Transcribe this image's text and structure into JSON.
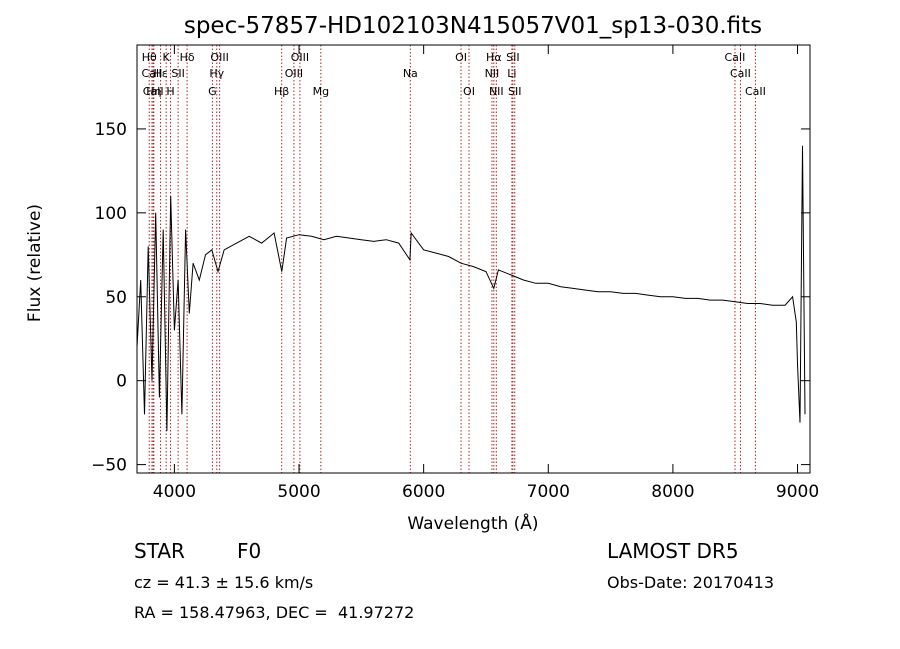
{
  "chart_data": {
    "type": "line",
    "title": "spec-57857-HD102103N415057V01_sp13-030.fits",
    "xlabel": "Wavelength (Å)",
    "ylabel": "Flux (relative)",
    "xlim": [
      3700,
      9100
    ],
    "ylim": [
      -55,
      200
    ],
    "x_ticks": [
      4000,
      5000,
      6000,
      7000,
      8000,
      9000
    ],
    "y_ticks": [
      -50,
      0,
      50,
      100,
      150
    ],
    "grid": false,
    "line_color": "#000000",
    "marker_color": "#b22222",
    "spectrum": {
      "x": [
        3700,
        3730,
        3760,
        3790,
        3820,
        3850,
        3880,
        3910,
        3940,
        3970,
        4000,
        4030,
        4060,
        4090,
        4120,
        4150,
        4200,
        4250,
        4300,
        4350,
        4400,
        4500,
        4600,
        4700,
        4800,
        4862,
        4900,
        5000,
        5100,
        5200,
        5300,
        5400,
        5500,
        5600,
        5700,
        5800,
        5890,
        5900,
        6000,
        6100,
        6200,
        6300,
        6400,
        6500,
        6563,
        6600,
        6700,
        6800,
        6900,
        7000,
        7100,
        7200,
        7300,
        7400,
        7500,
        7600,
        7700,
        7800,
        7900,
        8000,
        8100,
        8200,
        8300,
        8400,
        8500,
        8600,
        8700,
        8800,
        8900,
        8960,
        8990,
        9000,
        9020,
        9040,
        9060
      ],
      "y": [
        20,
        60,
        -20,
        80,
        0,
        100,
        -10,
        90,
        -30,
        110,
        30,
        60,
        -20,
        90,
        40,
        70,
        60,
        75,
        78,
        65,
        78,
        82,
        86,
        82,
        88,
        65,
        85,
        87,
        86,
        84,
        86,
        85,
        84,
        83,
        84,
        82,
        72,
        88,
        78,
        76,
        74,
        70,
        68,
        65,
        55,
        66,
        63,
        60,
        58,
        58,
        56,
        55,
        54,
        53,
        53,
        52,
        52,
        51,
        50,
        50,
        49,
        49,
        48,
        48,
        47,
        46,
        46,
        45,
        45,
        50,
        35,
        10,
        -25,
        140,
        -20
      ]
    },
    "line_markers": [
      {
        "label": "Hθ",
        "x": 3798,
        "row": 0
      },
      {
        "label": "CaII",
        "x": 3820,
        "row": 1
      },
      {
        "label": "CaII",
        "x": 3830,
        "row": 2
      },
      {
        "label": "Hη",
        "x": 3835,
        "row": 2
      },
      {
        "label": "K",
        "x": 3934,
        "row": 0
      },
      {
        "label": "Hε",
        "x": 3889,
        "row": 1
      },
      {
        "label": "H",
        "x": 3969,
        "row": 2
      },
      {
        "label": "Hδ",
        "x": 4102,
        "row": 0
      },
      {
        "label": "SII",
        "x": 4030,
        "row": 1
      },
      {
        "label": "OIII",
        "x": 4363,
        "row": 0
      },
      {
        "label": "Hγ",
        "x": 4340,
        "row": 1
      },
      {
        "label": "G",
        "x": 4305,
        "row": 2
      },
      {
        "label": "Hβ",
        "x": 4861,
        "row": 2
      },
      {
        "label": "OIII",
        "x": 4959,
        "row": 1
      },
      {
        "label": "OIII",
        "x": 5007,
        "row": 0
      },
      {
        "label": "Mg",
        "x": 5175,
        "row": 2
      },
      {
        "label": "Na",
        "x": 5893,
        "row": 1
      },
      {
        "label": "OI",
        "x": 6300,
        "row": 0
      },
      {
        "label": "OI",
        "x": 6364,
        "row": 2
      },
      {
        "label": "Hα",
        "x": 6563,
        "row": 0
      },
      {
        "label": "NII",
        "x": 6548,
        "row": 1
      },
      {
        "label": "NII",
        "x": 6583,
        "row": 2
      },
      {
        "label": "SII",
        "x": 6716,
        "row": 0
      },
      {
        "label": "Li",
        "x": 6708,
        "row": 1
      },
      {
        "label": "SII",
        "x": 6731,
        "row": 2
      },
      {
        "label": "CaII",
        "x": 8498,
        "row": 0
      },
      {
        "label": "CaII",
        "x": 8542,
        "row": 1
      },
      {
        "label": "CaII",
        "x": 8662,
        "row": 2
      }
    ]
  },
  "footer": {
    "object_type": "STAR",
    "subclass": "F0",
    "redshift": "cz = 41.3 ± 15.6 km/s",
    "coords": "RA = 158.47963, DEC =  41.97272",
    "survey": "LAMOST DR5",
    "obs_date": "Obs-Date: 20170413"
  }
}
